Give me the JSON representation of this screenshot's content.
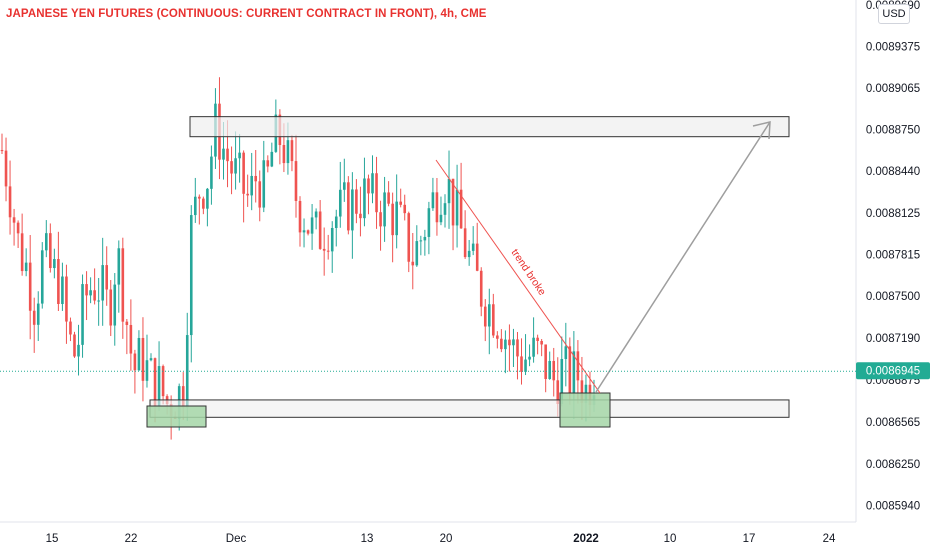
{
  "header": {
    "title": "JAPANESE YEN FUTURES (CONTINUOUS: CURRENT CONTRACT IN FRONT), 4h, CME",
    "currency": "USD"
  },
  "chart_data": {
    "type": "candlestick",
    "y_ticks": [
      "0.0089690",
      "0.0089375",
      "0.0089065",
      "0.0088750",
      "0.0088440",
      "0.0088125",
      "0.0087815",
      "0.0087500",
      "0.0087190",
      "0.0086875",
      "0.0086565",
      "0.0086250",
      "0.0085940"
    ],
    "ylim": [
      0.00858,
      0.00897
    ],
    "x_ticks": [
      {
        "label": "15",
        "bold": false
      },
      {
        "label": "22",
        "bold": false
      },
      {
        "label": "Dec",
        "bold": false
      },
      {
        "label": "13",
        "bold": false
      },
      {
        "label": "20",
        "bold": false
      },
      {
        "label": "2022",
        "bold": true
      },
      {
        "label": "10",
        "bold": false
      },
      {
        "label": "17",
        "bold": false
      },
      {
        "label": "24",
        "bold": false
      }
    ],
    "last_price": "0.0086945",
    "last_price_value": 0.0086945,
    "resistance_zone": [
      0.00887,
      0.008885
    ],
    "support_zone": [
      0.00866,
      0.008673
    ],
    "annotations": {
      "trendline_label": "trend broke"
    },
    "colors": {
      "up": "#26a69a",
      "down": "#ef5350",
      "label": "#e8312f",
      "price_tag": "#22ab94",
      "arrow": "#9e9e9e",
      "zone_fill": "#a5d6a7",
      "box_fill": "#eeeeee"
    },
    "path": [
      0.00886,
      0.008828,
      0.008789,
      0.008772,
      0.008744,
      0.008781,
      0.008768,
      0.008763,
      0.00872,
      0.008705,
      0.008748,
      0.00876,
      0.008757,
      0.00874,
      0.008785,
      0.00874,
      0.008695,
      0.008705,
      0.00869,
      0.008685,
      0.00867,
      0.008675,
      0.00868,
      0.0088,
      0.00883,
      0.00884,
      0.008878,
      0.00886,
      0.008845,
      0.008835,
      0.008822,
      0.008842,
      0.008828,
      0.008864,
      0.00887,
      0.008843,
      0.00882,
      0.008808,
      0.008795,
      0.0088,
      0.008808,
      0.008812,
      0.008818,
      0.008822,
      0.008826,
      0.008822,
      0.00882,
      0.008815,
      0.00881,
      0.008795,
      0.00878,
      0.008795,
      0.008815,
      0.00883,
      0.00884,
      0.008815,
      0.008795,
      0.008775,
      0.008758,
      0.008745,
      0.008738,
      0.008725,
      0.008712,
      0.008705,
      0.008705,
      0.008708,
      0.0087,
      0.008687,
      0.008695,
      0.00869,
      0.008692,
      0.00868,
      0.008695
    ]
  }
}
